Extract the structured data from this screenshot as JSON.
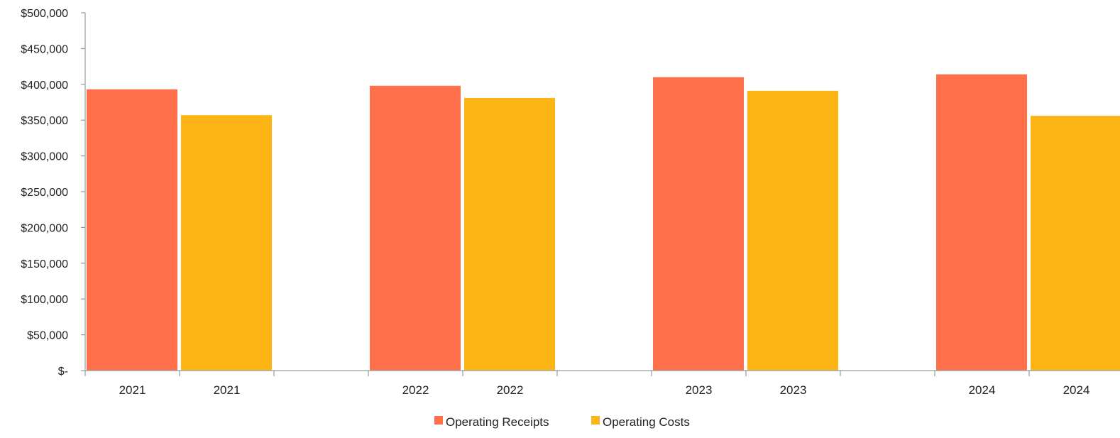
{
  "chart_data": {
    "type": "bar",
    "categories": [
      "2021",
      "2021",
      "",
      "2022",
      "2022",
      "",
      "2023",
      "2023",
      "",
      "2024",
      "2024",
      ""
    ],
    "series": [
      {
        "name": "Operating Receipts",
        "color": "#FF6F4A",
        "values": [
          393000,
          null,
          null,
          398000,
          null,
          null,
          410000,
          null,
          null,
          414000,
          null,
          null
        ]
      },
      {
        "name": "Operating Costs",
        "color": "#FDB515",
        "values": [
          null,
          357000,
          null,
          null,
          381000,
          null,
          null,
          391000,
          null,
          null,
          356000,
          null
        ]
      }
    ],
    "y_ticks": [
      "$-",
      "$50,000",
      "$100,000",
      "$150,000",
      "$200,000",
      "$250,000",
      "$300,000",
      "$350,000",
      "$400,000",
      "$450,000",
      "$500,000"
    ],
    "ylim": [
      0,
      500000
    ],
    "title": "",
    "xlabel": "",
    "ylabel": "",
    "grid": false,
    "legend_position": "bottom-center"
  }
}
